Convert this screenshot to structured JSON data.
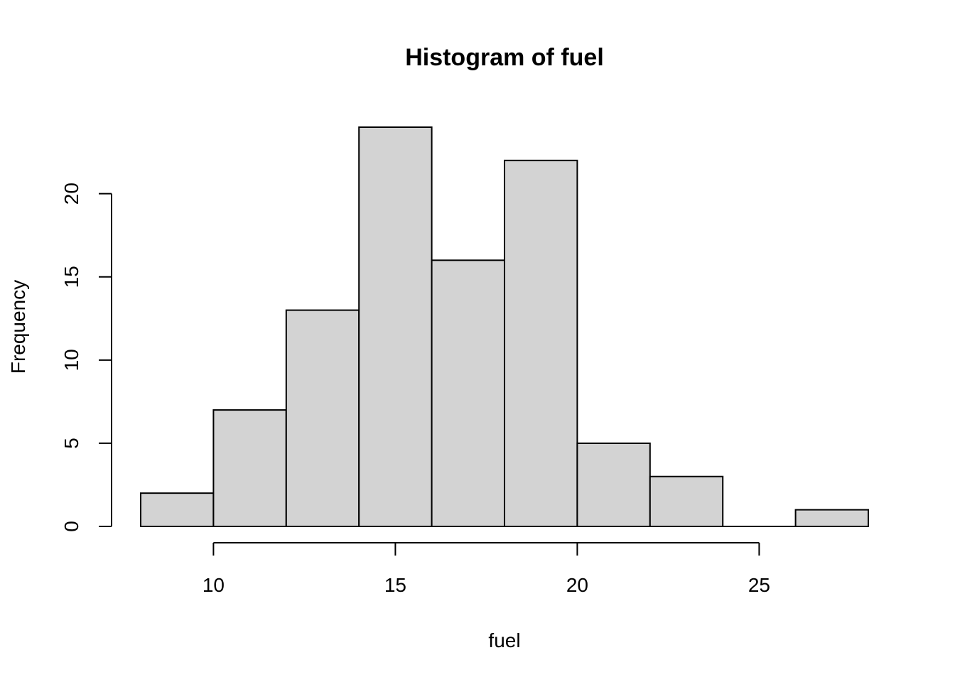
{
  "chart_data": {
    "type": "bar",
    "title": "Histogram of fuel",
    "xlabel": "fuel",
    "ylabel": "Frequency",
    "bins": [
      {
        "from": 8,
        "to": 10,
        "count": 2
      },
      {
        "from": 10,
        "to": 12,
        "count": 7
      },
      {
        "from": 12,
        "to": 14,
        "count": 13
      },
      {
        "from": 14,
        "to": 16,
        "count": 24
      },
      {
        "from": 16,
        "to": 18,
        "count": 16
      },
      {
        "from": 18,
        "to": 20,
        "count": 22
      },
      {
        "from": 20,
        "to": 22,
        "count": 5
      },
      {
        "from": 22,
        "to": 24,
        "count": 3
      },
      {
        "from": 24,
        "to": 26,
        "count": 0
      },
      {
        "from": 26,
        "to": 28,
        "count": 1
      }
    ],
    "xlim": [
      8,
      28
    ],
    "ylim": [
      0,
      24
    ],
    "x_ticks": [
      10,
      15,
      20,
      25
    ],
    "y_ticks": [
      0,
      5,
      10,
      15,
      20
    ],
    "grid": false,
    "bar_fill": "#d3d3d3",
    "bar_stroke": "#000000"
  }
}
